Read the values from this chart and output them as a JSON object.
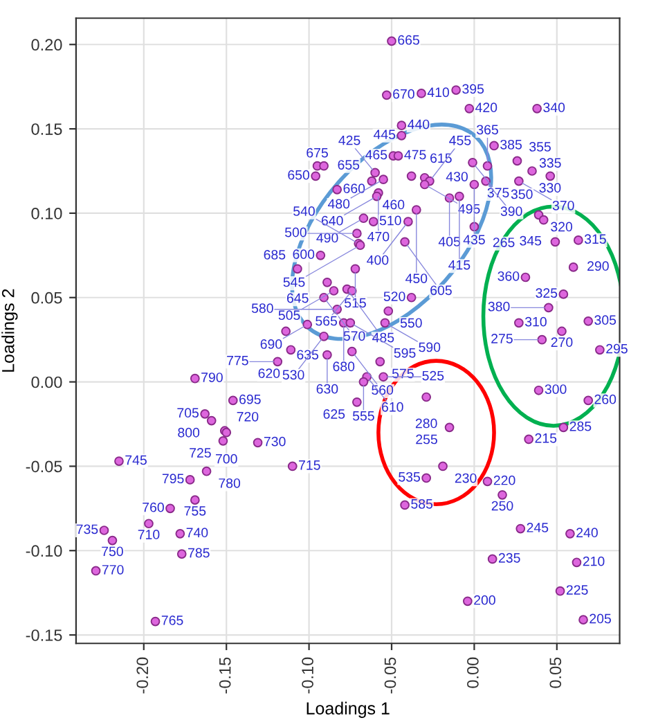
{
  "chart_data": {
    "type": "scatter",
    "xlabel": "Loadings 1",
    "ylabel": "Loadings 2",
    "xlim": [
      -0.241,
      0.088
    ],
    "ylim": [
      -0.155,
      0.2156
    ],
    "xticks": [
      {
        "value": -0.2,
        "label": "-0.20"
      },
      {
        "value": -0.15,
        "label": "-0.15"
      },
      {
        "value": -0.1,
        "label": "-0.10"
      },
      {
        "value": -0.05,
        "label": "-0.05"
      },
      {
        "value": 0,
        "label": "0.00"
      },
      {
        "value": 0.05,
        "label": "0.05"
      }
    ],
    "yticks": [
      {
        "value": -0.15,
        "label": "-0.15"
      },
      {
        "value": -0.1,
        "label": "-0.10"
      },
      {
        "value": -0.05,
        "label": "-0.05"
      },
      {
        "value": 0,
        "label": "0.00"
      },
      {
        "value": 0.05,
        "label": "0.05"
      },
      {
        "value": 0.1,
        "label": "0.10"
      },
      {
        "value": 0.15,
        "label": "0.15"
      },
      {
        "value": 0.2,
        "label": "0.20"
      }
    ],
    "grid": true,
    "marker": "circle",
    "series": [
      {
        "color": "#dd66dd",
        "x": [
          -0.05,
          -0.053,
          -0.032,
          -0.011,
          -0.003,
          0.038,
          -0.044,
          -0.044,
          -0.049,
          -0.046,
          -0.095,
          -0.091,
          -0.096,
          -0.083,
          -0.06,
          -0.062,
          -0.055,
          -0.038,
          -0.03,
          -0.027,
          -0.03,
          -0.058,
          -0.059,
          0.012,
          -0.001,
          0.008,
          0.026,
          0.035,
          0.046,
          0.007,
          0.0,
          0.027,
          -0.015,
          -0.009,
          0.0,
          0.039,
          0.042,
          0.049,
          0.063,
          0.06,
          0.031,
          0.054,
          0.045,
          0.027,
          0.069,
          0.053,
          0.041,
          0.076,
          -0.067,
          -0.061,
          -0.04,
          -0.035,
          -0.071,
          -0.07,
          -0.069,
          -0.042,
          -0.093,
          -0.107,
          -0.072,
          -0.089,
          -0.091,
          -0.085,
          -0.077,
          -0.074,
          -0.038,
          -0.083,
          -0.052,
          -0.101,
          -0.079,
          -0.075,
          -0.054,
          -0.114,
          -0.091,
          -0.111,
          -0.119,
          -0.089,
          -0.074,
          -0.057,
          -0.065,
          -0.067,
          -0.055,
          -0.071,
          -0.146,
          -0.169,
          -0.163,
          -0.159,
          -0.151,
          -0.15,
          -0.152,
          -0.131,
          -0.11,
          -0.042,
          -0.215,
          -0.162,
          -0.172,
          -0.169,
          -0.184,
          -0.197,
          -0.224,
          -0.219,
          -0.178,
          -0.177,
          -0.229,
          -0.193,
          0.039,
          0.069,
          0.054,
          0.033,
          -0.029,
          -0.015,
          -0.019,
          -0.029,
          0.008,
          0.017,
          0.028,
          0.058,
          0.011,
          0.062,
          -0.004,
          0.052,
          0.066
        ],
        "values": [
          0.202,
          0.17,
          0.171,
          0.173,
          0.162,
          0.162,
          0.152,
          0.146,
          0.134,
          0.134,
          0.128,
          0.128,
          0.122,
          0.114,
          0.124,
          0.119,
          0.12,
          0.122,
          0.121,
          0.119,
          0.117,
          0.112,
          0.11,
          0.14,
          0.13,
          0.128,
          0.131,
          0.125,
          0.122,
          0.119,
          0.117,
          0.119,
          0.109,
          0.11,
          0.092,
          0.099,
          0.096,
          0.083,
          0.084,
          0.068,
          0.062,
          0.052,
          0.044,
          0.035,
          0.036,
          0.03,
          0.025,
          0.019,
          0.097,
          0.095,
          0.095,
          0.102,
          0.088,
          0.082,
          0.081,
          0.083,
          0.075,
          0.067,
          0.067,
          0.059,
          0.05,
          0.054,
          0.055,
          0.054,
          0.05,
          0.043,
          0.042,
          0.034,
          0.035,
          0.035,
          0.035,
          0.03,
          0.027,
          0.019,
          0.012,
          0.016,
          0.018,
          0.012,
          0.003,
          0.0,
          0.003,
          -0.012,
          -0.011,
          0.002,
          -0.019,
          -0.023,
          -0.029,
          -0.03,
          -0.035,
          -0.036,
          -0.05,
          -0.073,
          -0.047,
          -0.053,
          -0.058,
          -0.07,
          -0.075,
          -0.084,
          -0.088,
          -0.094,
          -0.09,
          -0.102,
          -0.112,
          -0.142,
          -0.005,
          -0.011,
          -0.027,
          -0.034,
          -0.009,
          -0.027,
          -0.05,
          -0.057,
          -0.059,
          -0.067,
          -0.087,
          -0.09,
          -0.105,
          -0.107,
          -0.13,
          -0.124,
          -0.141
        ]
      }
    ],
    "annotations": [
      {
        "text": "665",
        "x": -0.05,
        "y": 0.202
      },
      {
        "text": "670",
        "x": -0.053,
        "y": 0.17
      },
      {
        "text": "410",
        "x": -0.032,
        "y": 0.171
      },
      {
        "text": "395",
        "x": -0.011,
        "y": 0.173
      },
      {
        "text": "420",
        "x": -0.003,
        "y": 0.162
      },
      {
        "text": "340",
        "x": 0.038,
        "y": 0.162
      },
      {
        "text": "440",
        "x": -0.044,
        "y": 0.152
      },
      {
        "text": "445",
        "x": -0.044,
        "y": 0.146
      },
      {
        "text": "465",
        "x": -0.049,
        "y": 0.134
      },
      {
        "text": "475",
        "x": -0.046,
        "y": 0.134
      },
      {
        "text": "675",
        "x": -0.095,
        "y": 0.128
      },
      {
        "text": "655",
        "x": -0.091,
        "y": 0.128
      },
      {
        "text": "650",
        "x": -0.096,
        "y": 0.122
      },
      {
        "text": "660",
        "x": -0.083,
        "y": 0.114
      },
      {
        "text": "425",
        "x": -0.06,
        "y": 0.124
      },
      {
        "text": "460",
        "x": -0.062,
        "y": 0.119
      },
      {
        "text": "480",
        "x": -0.055,
        "y": 0.12
      },
      {
        "text": "615",
        "x": -0.038,
        "y": 0.122
      },
      {
        "text": "430",
        "x": -0.03,
        "y": 0.121
      },
      {
        "text": "455",
        "x": -0.027,
        "y": 0.119
      },
      {
        "text": "495",
        "x": -0.03,
        "y": 0.117
      },
      {
        "text": "470",
        "x": -0.058,
        "y": 0.112
      },
      {
        "text": "640",
        "x": -0.059,
        "y": 0.11
      },
      {
        "text": "385",
        "x": 0.012,
        "y": 0.14
      },
      {
        "text": "375",
        "x": -0.001,
        "y": 0.13
      },
      {
        "text": "365",
        "x": 0.008,
        "y": 0.128
      },
      {
        "text": "355",
        "x": 0.026,
        "y": 0.131
      },
      {
        "text": "330",
        "x": 0.035,
        "y": 0.125
      },
      {
        "text": "335",
        "x": 0.046,
        "y": 0.122
      },
      {
        "text": "390",
        "x": 0.007,
        "y": 0.119
      },
      {
        "text": "435",
        "x": 0.0,
        "y": 0.117
      },
      {
        "text": "370",
        "x": 0.027,
        "y": 0.119
      },
      {
        "text": "405",
        "x": -0.015,
        "y": 0.109
      },
      {
        "text": "415",
        "x": -0.009,
        "y": 0.11
      },
      {
        "text": "265",
        "x": 0.0,
        "y": 0.092
      },
      {
        "text": "320",
        "x": 0.039,
        "y": 0.099
      },
      {
        "text": "350",
        "x": 0.042,
        "y": 0.096
      },
      {
        "text": "345",
        "x": 0.049,
        "y": 0.083
      },
      {
        "text": "315",
        "x": 0.063,
        "y": 0.084
      },
      {
        "text": "290",
        "x": 0.06,
        "y": 0.068
      },
      {
        "text": "360",
        "x": 0.031,
        "y": 0.062
      },
      {
        "text": "325",
        "x": 0.054,
        "y": 0.052
      },
      {
        "text": "380",
        "x": 0.045,
        "y": 0.044
      },
      {
        "text": "310",
        "x": 0.027,
        "y": 0.035
      },
      {
        "text": "305",
        "x": 0.069,
        "y": 0.036
      },
      {
        "text": "270",
        "x": 0.053,
        "y": 0.03
      },
      {
        "text": "275",
        "x": 0.041,
        "y": 0.025
      },
      {
        "text": "295",
        "x": 0.076,
        "y": 0.019
      },
      {
        "text": "490",
        "x": -0.067,
        "y": 0.097
      },
      {
        "text": "510",
        "x": -0.061,
        "y": 0.095
      },
      {
        "text": "400",
        "x": -0.04,
        "y": 0.095
      },
      {
        "text": "450",
        "x": -0.035,
        "y": 0.102
      },
      {
        "text": "500",
        "x": -0.071,
        "y": 0.088
      },
      {
        "text": "540",
        "x": -0.07,
        "y": 0.082
      },
      {
        "text": "545",
        "x": -0.069,
        "y": 0.081
      },
      {
        "text": "605",
        "x": -0.042,
        "y": 0.083
      },
      {
        "text": "600",
        "x": -0.093,
        "y": 0.075
      },
      {
        "text": "685",
        "x": -0.107,
        "y": 0.067
      },
      {
        "text": "515",
        "x": -0.072,
        "y": 0.067
      },
      {
        "text": "645",
        "x": -0.089,
        "y": 0.059
      },
      {
        "text": "570",
        "x": -0.091,
        "y": 0.05
      },
      {
        "text": "505",
        "x": -0.085,
        "y": 0.054
      },
      {
        "text": "485",
        "x": -0.077,
        "y": 0.055
      },
      {
        "text": "565",
        "x": -0.074,
        "y": 0.054
      },
      {
        "text": "520",
        "x": -0.038,
        "y": 0.05
      },
      {
        "text": "580",
        "x": -0.083,
        "y": 0.043
      },
      {
        "text": "550",
        "x": -0.052,
        "y": 0.042
      },
      {
        "text": "690",
        "x": -0.101,
        "y": 0.034
      },
      {
        "text": "680",
        "x": -0.079,
        "y": 0.035
      },
      {
        "text": "595",
        "x": -0.075,
        "y": 0.035
      },
      {
        "text": "590",
        "x": -0.054,
        "y": 0.035
      },
      {
        "text": "635",
        "x": -0.114,
        "y": 0.03
      },
      {
        "text": "530",
        "x": -0.091,
        "y": 0.027
      },
      {
        "text": "620",
        "x": -0.111,
        "y": 0.019
      },
      {
        "text": "775",
        "x": -0.119,
        "y": 0.012
      },
      {
        "text": "630",
        "x": -0.089,
        "y": 0.016
      },
      {
        "text": "560",
        "x": -0.074,
        "y": 0.018
      },
      {
        "text": "575",
        "x": -0.057,
        "y": 0.012
      },
      {
        "text": "610",
        "x": -0.065,
        "y": 0.003
      },
      {
        "text": "555",
        "x": -0.067,
        "y": 0.0
      },
      {
        "text": "525",
        "x": -0.055,
        "y": 0.003
      },
      {
        "text": "625",
        "x": -0.071,
        "y": -0.012
      },
      {
        "text": "695",
        "x": -0.146,
        "y": -0.011
      },
      {
        "text": "790",
        "x": -0.169,
        "y": 0.002
      },
      {
        "text": "705",
        "x": -0.163,
        "y": -0.019
      },
      {
        "text": "800",
        "x": -0.159,
        "y": -0.023
      },
      {
        "text": "720",
        "x": -0.151,
        "y": -0.029
      },
      {
        "text": "700",
        "x": -0.15,
        "y": -0.03
      },
      {
        "text": "725",
        "x": -0.152,
        "y": -0.035
      },
      {
        "text": "730",
        "x": -0.131,
        "y": -0.036
      },
      {
        "text": "715",
        "x": -0.11,
        "y": -0.05
      },
      {
        "text": "585",
        "x": -0.042,
        "y": -0.073
      },
      {
        "text": "745",
        "x": -0.215,
        "y": -0.047
      },
      {
        "text": "780",
        "x": -0.162,
        "y": -0.053
      },
      {
        "text": "795",
        "x": -0.172,
        "y": -0.058
      },
      {
        "text": "755",
        "x": -0.169,
        "y": -0.07
      },
      {
        "text": "760",
        "x": -0.184,
        "y": -0.075
      },
      {
        "text": "710",
        "x": -0.197,
        "y": -0.084
      },
      {
        "text": "735",
        "x": -0.224,
        "y": -0.088
      },
      {
        "text": "750",
        "x": -0.219,
        "y": -0.094
      },
      {
        "text": "740",
        "x": -0.178,
        "y": -0.09
      },
      {
        "text": "785",
        "x": -0.177,
        "y": -0.102
      },
      {
        "text": "770",
        "x": -0.229,
        "y": -0.112
      },
      {
        "text": "765",
        "x": -0.193,
        "y": -0.142
      },
      {
        "text": "300",
        "x": 0.039,
        "y": -0.005
      },
      {
        "text": "260",
        "x": 0.069,
        "y": -0.011
      },
      {
        "text": "285",
        "x": 0.054,
        "y": -0.027
      },
      {
        "text": "215",
        "x": 0.033,
        "y": -0.034
      },
      {
        "text": "280",
        "x": -0.029,
        "y": -0.009
      },
      {
        "text": "255",
        "x": -0.015,
        "y": -0.027
      },
      {
        "text": "230",
        "x": -0.019,
        "y": -0.05
      },
      {
        "text": "535",
        "x": -0.029,
        "y": -0.057
      },
      {
        "text": "220",
        "x": 0.008,
        "y": -0.059
      },
      {
        "text": "250",
        "x": 0.017,
        "y": -0.067
      },
      {
        "text": "245",
        "x": 0.028,
        "y": -0.087
      },
      {
        "text": "240",
        "x": 0.058,
        "y": -0.09
      },
      {
        "text": "235",
        "x": 0.011,
        "y": -0.105
      },
      {
        "text": "210",
        "x": 0.062,
        "y": -0.107
      },
      {
        "text": "200",
        "x": -0.004,
        "y": -0.13
      },
      {
        "text": "225",
        "x": 0.052,
        "y": -0.124
      },
      {
        "text": "205",
        "x": 0.066,
        "y": -0.141
      }
    ]
  }
}
